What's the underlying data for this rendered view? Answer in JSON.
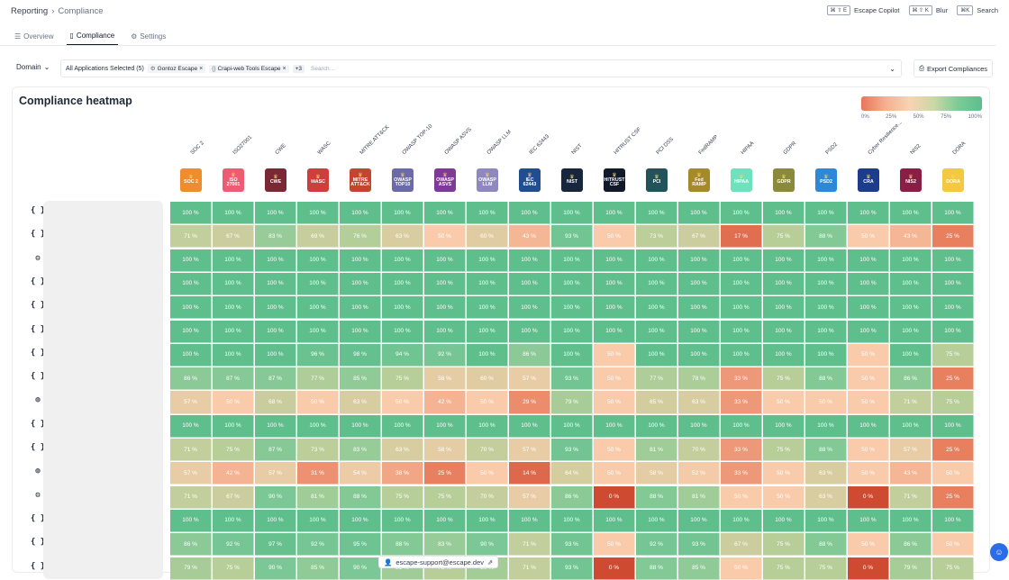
{
  "breadcrumb": {
    "root": "Reporting",
    "current": "Compliance"
  },
  "shortcuts": [
    {
      "keys": "⌘ ⇧ E",
      "label": "Escape Copilot"
    },
    {
      "keys": "⌘ ⇧ K",
      "label": "Blur"
    },
    {
      "keys": "⌘K",
      "label": "Search"
    }
  ],
  "tabs": [
    {
      "label": "Overview",
      "icon": "list-icon"
    },
    {
      "label": "Compliance",
      "icon": "document-icon"
    },
    {
      "label": "Settings",
      "icon": "gear-icon"
    }
  ],
  "filters": {
    "domain_label": "Domain",
    "apps_label": "All Applications Selected (5)",
    "chips": [
      "Gontoz Escape",
      "Crapi-web Tools Escape"
    ],
    "more": "+3",
    "search_placeholder": "Search...",
    "export_label": "Export Compliances"
  },
  "heatmap": {
    "title": "Compliance heatmap",
    "legend_ticks": [
      "0%",
      "25%",
      "50%",
      "75%",
      "100%"
    ],
    "columns": [
      {
        "name": "SOC 2",
        "badge": "SOC 2",
        "color": "#f08c2b"
      },
      {
        "name": "ISO27001",
        "badge": "ISO 27001",
        "color": "#ee5c73"
      },
      {
        "name": "CWE",
        "badge": "CWE",
        "color": "#7b2835"
      },
      {
        "name": "WASC",
        "badge": "WASC",
        "color": "#cf3d3d"
      },
      {
        "name": "MITRE ATT&CK",
        "badge": "MITRE ATT&CK",
        "color": "#c2452f"
      },
      {
        "name": "OWASP TOP-10",
        "badge": "OWASP TOP10",
        "color": "#6c6aa8"
      },
      {
        "name": "OWASP ASVS",
        "badge": "OWASP ASVS",
        "color": "#7e3a96"
      },
      {
        "name": "OWASP LLM",
        "badge": "OWASP LLM",
        "color": "#8f88c0"
      },
      {
        "name": "IEC 62443",
        "badge": "IEC 62443",
        "color": "#1f4f91"
      },
      {
        "name": "NIST",
        "badge": "NIST",
        "color": "#17263d"
      },
      {
        "name": "HITRUST CSF",
        "badge": "HITRUST CSF",
        "color": "#111a2a"
      },
      {
        "name": "PCI DSS",
        "badge": "PCI",
        "color": "#23535a"
      },
      {
        "name": "FedRAMP",
        "badge": "Fed RAMP",
        "color": "#a58a2a"
      },
      {
        "name": "HIPAA",
        "badge": "HIPAA",
        "color": "#6ee1bd"
      },
      {
        "name": "GDPR",
        "badge": "GDPR",
        "color": "#8b8a3a"
      },
      {
        "name": "PSD2",
        "badge": "PSD2",
        "color": "#2d89d8"
      },
      {
        "name": "Cyber Resilience...",
        "badge": "CRA",
        "color": "#1b3d8c"
      },
      {
        "name": "NIS2",
        "badge": "NIS2",
        "color": "#8a1e45"
      },
      {
        "name": "DORA",
        "badge": "DORA",
        "color": "#f5c842"
      }
    ],
    "rows": [
      {
        "icon": "code-braces-icon",
        "glyph": "{ }",
        "values": [
          100,
          100,
          100,
          100,
          100,
          100,
          100,
          100,
          100,
          100,
          100,
          100,
          100,
          100,
          100,
          100,
          100,
          100,
          100
        ]
      },
      {
        "icon": "code-braces-icon",
        "glyph": "{ }",
        "values": [
          71,
          67,
          83,
          69,
          76,
          63,
          50,
          60,
          43,
          93,
          50,
          73,
          67,
          17,
          75,
          88,
          50,
          43,
          25
        ]
      },
      {
        "icon": "gear-cog-icon",
        "glyph": "⚙",
        "values": [
          100,
          100,
          100,
          100,
          100,
          100,
          100,
          100,
          100,
          100,
          100,
          100,
          100,
          100,
          100,
          100,
          100,
          100,
          100
        ]
      },
      {
        "icon": "code-braces-icon",
        "glyph": "{ }",
        "values": [
          100,
          100,
          100,
          100,
          100,
          100,
          100,
          100,
          100,
          100,
          100,
          100,
          100,
          100,
          100,
          100,
          100,
          100,
          100
        ]
      },
      {
        "icon": "code-braces-icon",
        "glyph": "{ }",
        "values": [
          100,
          100,
          100,
          100,
          100,
          100,
          100,
          100,
          100,
          100,
          100,
          100,
          100,
          100,
          100,
          100,
          100,
          100,
          100
        ]
      },
      {
        "icon": "code-braces-icon",
        "glyph": "{ }",
        "values": [
          100,
          100,
          100,
          100,
          100,
          100,
          100,
          100,
          100,
          100,
          100,
          100,
          100,
          100,
          100,
          100,
          100,
          100,
          100
        ]
      },
      {
        "icon": "code-braces-icon",
        "glyph": "{ }",
        "values": [
          100,
          100,
          100,
          96,
          98,
          94,
          92,
          100,
          86,
          100,
          50,
          100,
          100,
          100,
          100,
          100,
          50,
          100,
          75
        ]
      },
      {
        "icon": "code-braces-icon",
        "glyph": "{ }",
        "values": [
          86,
          87,
          87,
          77,
          85,
          75,
          58,
          60,
          57,
          93,
          50,
          77,
          78,
          33,
          75,
          88,
          50,
          86,
          25
        ]
      },
      {
        "icon": "globe-icon",
        "glyph": "◍",
        "values": [
          57,
          50,
          68,
          50,
          63,
          50,
          42,
          50,
          29,
          79,
          50,
          65,
          63,
          33,
          50,
          50,
          50,
          71,
          75
        ]
      },
      {
        "icon": "code-braces-icon",
        "glyph": "{ }",
        "values": [
          100,
          100,
          100,
          100,
          100,
          100,
          100,
          100,
          100,
          100,
          100,
          100,
          100,
          100,
          100,
          100,
          100,
          100,
          100
        ]
      },
      {
        "icon": "code-braces-icon",
        "glyph": "{ }",
        "values": [
          71,
          75,
          87,
          73,
          83,
          63,
          58,
          70,
          57,
          93,
          50,
          81,
          70,
          33,
          75,
          88,
          50,
          57,
          25
        ]
      },
      {
        "icon": "globe-icon",
        "glyph": "◍",
        "values": [
          57,
          42,
          57,
          31,
          54,
          38,
          25,
          50,
          14,
          64,
          50,
          58,
          52,
          33,
          50,
          63,
          50,
          43,
          50
        ]
      },
      {
        "icon": "gear-cog-icon",
        "glyph": "⚙",
        "values": [
          71,
          67,
          90,
          81,
          88,
          75,
          75,
          70,
          57,
          86,
          0,
          88,
          81,
          50,
          50,
          63,
          0,
          71,
          25
        ]
      },
      {
        "icon": "code-braces-icon",
        "glyph": "{ }",
        "values": [
          100,
          100,
          100,
          100,
          100,
          100,
          100,
          100,
          100,
          100,
          100,
          100,
          100,
          100,
          100,
          100,
          100,
          100,
          100
        ]
      },
      {
        "icon": "code-braces-icon",
        "glyph": "{ }",
        "values": [
          86,
          92,
          97,
          92,
          95,
          88,
          83,
          90,
          71,
          93,
          50,
          92,
          93,
          67,
          75,
          88,
          50,
          86,
          50
        ]
      },
      {
        "icon": "code-braces-icon",
        "glyph": "{ }",
        "values": [
          79,
          75,
          90,
          85,
          90,
          81,
          75,
          80,
          71,
          93,
          0,
          88,
          85,
          50,
          75,
          75,
          0,
          79,
          75
        ]
      }
    ],
    "unit": "%"
  },
  "footer": {
    "support_email": "escape-support@escape.dev"
  },
  "colors": {
    "accent": "#111827",
    "chat": "#2b6de9"
  }
}
